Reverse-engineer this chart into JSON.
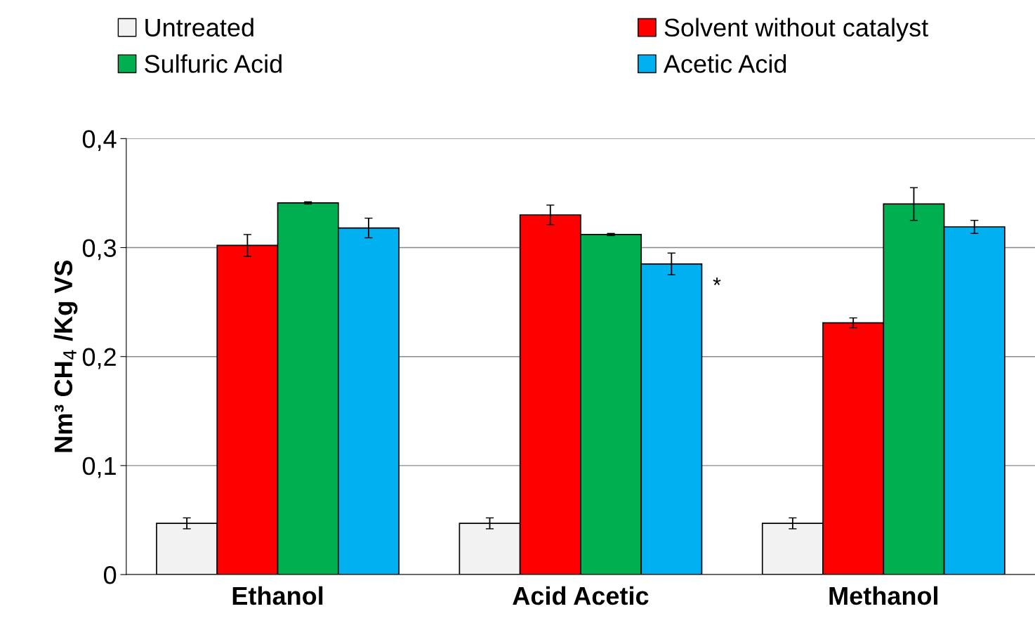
{
  "chart_data": {
    "type": "bar",
    "ylabel": "Nm³ CH$_{4}$ /Kg VS",
    "categories": [
      "Ethanol",
      "Acid Acetic",
      "Methanol"
    ],
    "series": [
      {
        "name": "Untreated",
        "color": "#f2f2f2",
        "values": [
          0.047,
          0.047,
          0.047
        ],
        "errors": [
          0.005,
          0.005,
          0.005
        ]
      },
      {
        "name": "Solvent without catalyst",
        "color": "#ff0000",
        "values": [
          0.302,
          0.33,
          0.231
        ],
        "errors": [
          0.01,
          0.009,
          0.0045
        ]
      },
      {
        "name": "Sulfuric Acid",
        "color": "#00b050",
        "values": [
          0.341,
          0.312,
          0.34
        ],
        "errors": [
          0.001,
          0.001,
          0.015
        ]
      },
      {
        "name": "Acetic Acid",
        "color": "#00b0f0",
        "values": [
          0.318,
          0.285,
          0.319
        ],
        "errors": [
          0.009,
          0.01,
          0.006
        ]
      }
    ],
    "ylim": [
      0,
      0.4
    ],
    "yticks": [
      0,
      {
        "value": 0.1,
        "label": "0,1"
      },
      {
        "value": 0.2,
        "label": "0,2"
      },
      {
        "value": 0.3,
        "label": "0,3"
      },
      {
        "value": 0.4,
        "label": "0,4"
      }
    ],
    "annotations": [
      "*"
    ],
    "grid": "y",
    "legend": "top"
  }
}
